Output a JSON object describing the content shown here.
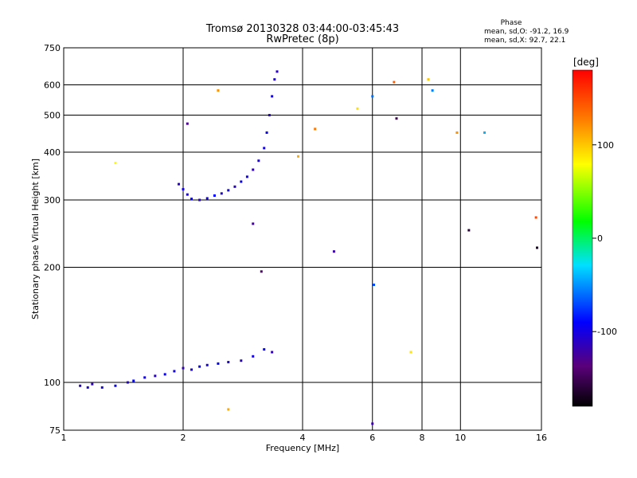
{
  "chart_data": {
    "type": "scatter",
    "title": "Tromsø 20130328 03:44:00-03:45:43",
    "subtitle": "RwPretec (8p)",
    "xlabel": "Frequency [MHz]",
    "ylabel": "Stationary phase Virtual Height [km]",
    "x_scale": "log",
    "y_scale": "log",
    "xlim": [
      1,
      16
    ],
    "ylim": [
      75,
      750
    ],
    "x_ticks": [
      1,
      2,
      4,
      6,
      8,
      10,
      16
    ],
    "y_ticks": [
      75,
      100,
      200,
      300,
      400,
      500,
      600,
      750
    ],
    "x_gridlines": [
      2,
      4,
      6,
      8,
      10
    ],
    "y_gridlines": [
      100,
      200,
      300,
      400,
      500,
      600
    ],
    "grid": true,
    "stats": {
      "heading": "Phase",
      "line_o": "mean, sd,O: -91.2, 16.9",
      "line_x": "mean, sd,X:  92.7, 22.1"
    },
    "colorbar": {
      "label": "[deg]",
      "range": [
        -180,
        180
      ],
      "ticks": [
        100,
        0,
        -100
      ]
    },
    "series": [
      {
        "values": [
          {
            "x": 1.1,
            "y": 98,
            "phase": -110
          },
          {
            "x": 1.15,
            "y": 97,
            "phase": -105
          },
          {
            "x": 1.18,
            "y": 99,
            "phase": -112
          },
          {
            "x": 1.25,
            "y": 97,
            "phase": -100
          },
          {
            "x": 1.35,
            "y": 98,
            "phase": -95
          },
          {
            "x": 1.45,
            "y": 100,
            "phase": -108
          },
          {
            "x": 1.5,
            "y": 101,
            "phase": -90
          },
          {
            "x": 1.6,
            "y": 103,
            "phase": -100
          },
          {
            "x": 1.7,
            "y": 104,
            "phase": -110
          },
          {
            "x": 1.8,
            "y": 105,
            "phase": -95
          },
          {
            "x": 1.9,
            "y": 107,
            "phase": -100
          },
          {
            "x": 2.0,
            "y": 109,
            "phase": -115
          },
          {
            "x": 2.1,
            "y": 108,
            "phase": -105
          },
          {
            "x": 2.2,
            "y": 110,
            "phase": -95
          },
          {
            "x": 2.3,
            "y": 111,
            "phase": -100
          },
          {
            "x": 2.45,
            "y": 112,
            "phase": -90
          },
          {
            "x": 2.6,
            "y": 113,
            "phase": -105
          },
          {
            "x": 2.8,
            "y": 114,
            "phase": -110
          },
          {
            "x": 3.0,
            "y": 117,
            "phase": -100
          },
          {
            "x": 3.2,
            "y": 122,
            "phase": -95
          },
          {
            "x": 3.35,
            "y": 120,
            "phase": -115
          }
        ]
      },
      {
        "values": [
          {
            "x": 1.95,
            "y": 330,
            "phase": -110
          },
          {
            "x": 2.0,
            "y": 320,
            "phase": -100
          },
          {
            "x": 2.05,
            "y": 310,
            "phase": -105
          },
          {
            "x": 2.1,
            "y": 302,
            "phase": -95
          },
          {
            "x": 2.2,
            "y": 300,
            "phase": -110
          },
          {
            "x": 2.3,
            "y": 303,
            "phase": -100
          },
          {
            "x": 2.4,
            "y": 308,
            "phase": -90
          },
          {
            "x": 2.5,
            "y": 312,
            "phase": -105
          },
          {
            "x": 2.6,
            "y": 318,
            "phase": -100
          },
          {
            "x": 2.7,
            "y": 325,
            "phase": -110
          },
          {
            "x": 2.8,
            "y": 335,
            "phase": -95
          },
          {
            "x": 2.9,
            "y": 345,
            "phase": -100
          },
          {
            "x": 3.0,
            "y": 360,
            "phase": -115
          },
          {
            "x": 3.1,
            "y": 380,
            "phase": -105
          },
          {
            "x": 3.2,
            "y": 410,
            "phase": -100
          },
          {
            "x": 3.25,
            "y": 450,
            "phase": -95
          },
          {
            "x": 3.3,
            "y": 500,
            "phase": -110
          },
          {
            "x": 3.35,
            "y": 560,
            "phase": -100
          },
          {
            "x": 3.4,
            "y": 620,
            "phase": -105
          },
          {
            "x": 3.45,
            "y": 650,
            "phase": -110
          }
        ]
      },
      {
        "values": [
          {
            "x": 1.35,
            "y": 375,
            "phase": 80
          },
          {
            "x": 2.45,
            "y": 580,
            "phase": 120
          },
          {
            "x": 3.9,
            "y": 390,
            "phase": 110
          },
          {
            "x": 4.3,
            "y": 460,
            "phase": 130
          },
          {
            "x": 5.5,
            "y": 520,
            "phase": 90
          },
          {
            "x": 6.8,
            "y": 610,
            "phase": 140
          },
          {
            "x": 8.3,
            "y": 620,
            "phase": 100
          },
          {
            "x": 9.8,
            "y": 450,
            "phase": 120
          },
          {
            "x": 15.5,
            "y": 270,
            "phase": 150
          },
          {
            "x": 2.6,
            "y": 85,
            "phase": 110
          },
          {
            "x": 7.5,
            "y": 120,
            "phase": 90
          }
        ]
      },
      {
        "values": [
          {
            "x": 2.05,
            "y": 475,
            "phase": -130
          },
          {
            "x": 3.0,
            "y": 260,
            "phase": -125
          },
          {
            "x": 3.15,
            "y": 195,
            "phase": -140
          },
          {
            "x": 4.8,
            "y": 220,
            "phase": -120
          },
          {
            "x": 6.0,
            "y": 560,
            "phase": -60
          },
          {
            "x": 6.05,
            "y": 180,
            "phase": -70
          },
          {
            "x": 6.9,
            "y": 490,
            "phase": -150
          },
          {
            "x": 8.5,
            "y": 580,
            "phase": -55
          },
          {
            "x": 10.5,
            "y": 250,
            "phase": -160
          },
          {
            "x": 11.5,
            "y": 450,
            "phase": -40
          },
          {
            "x": 15.6,
            "y": 225,
            "phase": -165
          },
          {
            "x": 6.0,
            "y": 78,
            "phase": -120
          }
        ]
      }
    ]
  }
}
